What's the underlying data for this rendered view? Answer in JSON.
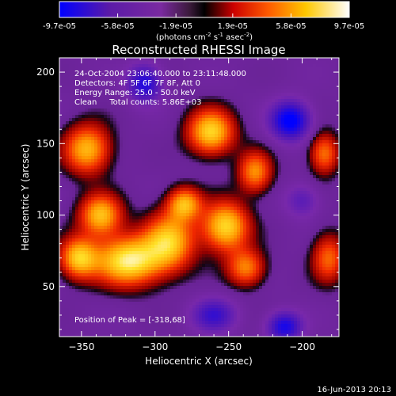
{
  "chart_data": {
    "type": "heatmap",
    "title": "Reconstructed RHESSI Image",
    "xlabel": "Heliocentric X (arcsec)",
    "ylabel": "Heliocentric Y (arcsec)",
    "xlim": [
      -365,
      -175
    ],
    "ylim": [
      15,
      210
    ],
    "xticks": [
      -350,
      -300,
      -250,
      -200
    ],
    "yticks": [
      50,
      100,
      150,
      200
    ],
    "grid": false,
    "colorbar": {
      "ticklabels": [
        "-9.7e-05",
        "-5.8e-05",
        "-1.9e-05",
        "1.9e-05",
        "5.8e-05",
        "9.7e-05"
      ],
      "tick_values": [
        -9.7e-05,
        -5.8e-05,
        -1.9e-05,
        1.9e-05,
        5.8e-05,
        9.7e-05
      ],
      "range": [
        -9.7e-05,
        9.7e-05
      ],
      "unit_prefix": "(photons cm",
      "unit_exp1": "-2",
      "unit_mid": " s",
      "unit_exp2": "-1",
      "unit_mid2": " asec",
      "unit_exp3": "-2",
      "unit_suffix": ")"
    },
    "annotations": [
      "24-Oct-2004 23:06:40.000 to 23:11:48.000",
      "Detectors: 4F 5F 6F 7F 8F, Att 0",
      "Energy Range: 25.0 - 50.0 keV",
      "Clean     Total counts: 5.86E+03",
      "Position of Peak = [-318,68]"
    ],
    "peak": [
      -318,
      68
    ],
    "sources": [
      {
        "x": -346,
        "y": 146,
        "sx": 11,
        "sy": 12,
        "a": 0.78
      },
      {
        "x": -337,
        "y": 100,
        "sx": 10,
        "sy": 10,
        "a": 0.8
      },
      {
        "x": -318,
        "y": 68,
        "sx": 16,
        "sy": 12,
        "a": 1.0
      },
      {
        "x": -352,
        "y": 70,
        "sx": 9,
        "sy": 10,
        "a": 0.8
      },
      {
        "x": -290,
        "y": 82,
        "sx": 12,
        "sy": 14,
        "a": 0.8
      },
      {
        "x": -280,
        "y": 108,
        "sx": 8,
        "sy": 8,
        "a": 0.72
      },
      {
        "x": -262,
        "y": 158,
        "sx": 11,
        "sy": 11,
        "a": 0.88
      },
      {
        "x": -252,
        "y": 92,
        "sx": 11,
        "sy": 12,
        "a": 0.9
      },
      {
        "x": -232,
        "y": 130,
        "sx": 8,
        "sy": 10,
        "a": 0.65
      },
      {
        "x": -238,
        "y": 63,
        "sx": 9,
        "sy": 9,
        "a": 0.62
      },
      {
        "x": -185,
        "y": 143,
        "sx": 7,
        "sy": 10,
        "a": 0.6
      },
      {
        "x": -182,
        "y": 70,
        "sx": 8,
        "sy": 12,
        "a": 0.55
      },
      {
        "x": -208,
        "y": 166,
        "sx": 9,
        "sy": 9,
        "a": -0.95
      },
      {
        "x": -212,
        "y": 22,
        "sx": 8,
        "sy": 7,
        "a": -0.75
      },
      {
        "x": -307,
        "y": 192,
        "sx": 8,
        "sy": 9,
        "a": -0.7
      },
      {
        "x": -260,
        "y": 30,
        "sx": 10,
        "sy": 8,
        "a": -0.55
      },
      {
        "x": -200,
        "y": 110,
        "sx": 8,
        "sy": 8,
        "a": -0.35
      }
    ]
  },
  "footer": {
    "timestamp": "16-Jun-2013 20:13"
  }
}
